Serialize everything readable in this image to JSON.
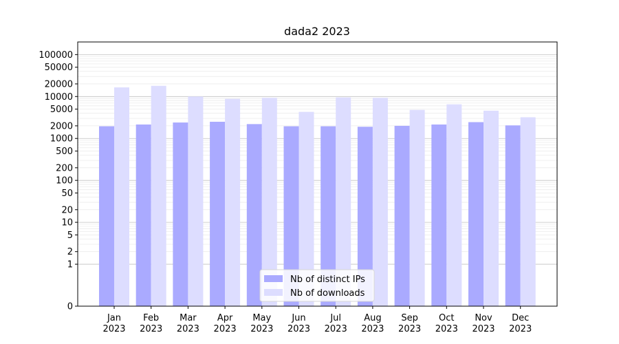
{
  "chart_data": {
    "type": "bar",
    "title": "dada2 2023",
    "xlabel": "",
    "ylabel": "",
    "y_scale": "symlog",
    "ylim": [
      0,
      200000
    ],
    "y_ticks": [
      0,
      1,
      2,
      5,
      10,
      20,
      50,
      100,
      200,
      500,
      1000,
      2000,
      5000,
      10000,
      20000,
      50000,
      100000
    ],
    "y_tick_labels": [
      "0",
      "1",
      "2",
      "5",
      "10",
      "20",
      "50",
      "100",
      "200",
      "500",
      "1000",
      "2000",
      "5000",
      "10000",
      "20000",
      "50000",
      "100000"
    ],
    "grid": true,
    "legend_position": "bottom-center",
    "categories": [
      "Jan\n2023",
      "Feb\n2023",
      "Mar\n2023",
      "Apr\n2023",
      "May\n2023",
      "Jun\n2023",
      "Jul\n2023",
      "Aug\n2023",
      "Sep\n2023",
      "Oct\n2023",
      "Nov\n2023",
      "Dec\n2023"
    ],
    "category_lines": [
      [
        "Jan",
        "2023"
      ],
      [
        "Feb",
        "2023"
      ],
      [
        "Mar",
        "2023"
      ],
      [
        "Apr",
        "2023"
      ],
      [
        "May",
        "2023"
      ],
      [
        "Jun",
        "2023"
      ],
      [
        "Jul",
        "2023"
      ],
      [
        "Aug",
        "2023"
      ],
      [
        "Sep",
        "2023"
      ],
      [
        "Oct",
        "2023"
      ],
      [
        "Nov",
        "2023"
      ],
      [
        "Dec",
        "2023"
      ]
    ],
    "series": [
      {
        "name": "Nb of distinct IPs",
        "color": "#aaaaff",
        "values": [
          1950,
          2150,
          2400,
          2500,
          2200,
          1950,
          1950,
          1900,
          2000,
          2150,
          2450,
          2050
        ]
      },
      {
        "name": "Nb of downloads",
        "color": "#ddddff",
        "values": [
          16500,
          18000,
          10000,
          8800,
          9300,
          4300,
          9500,
          9300,
          4800,
          6500,
          4600,
          3200
        ]
      }
    ]
  }
}
